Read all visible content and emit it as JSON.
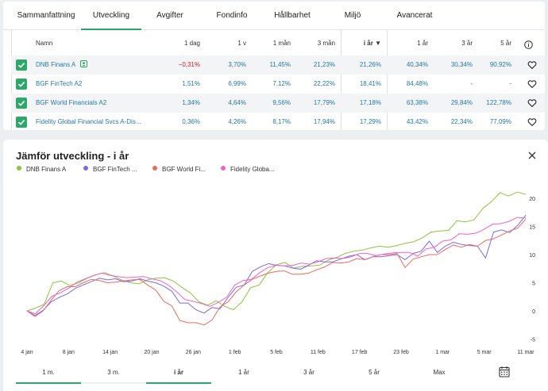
{
  "tabs": [
    {
      "label": "Sammanfattning"
    },
    {
      "label": "Utveckling",
      "active": true
    },
    {
      "label": "Avgifter"
    },
    {
      "label": "Fondinfo"
    },
    {
      "label": "Hållbarhet"
    },
    {
      "label": "Miljö"
    },
    {
      "label": "Avancerat"
    }
  ],
  "table": {
    "columns": [
      "Namn",
      "1 dag",
      "1 v",
      "1 mån",
      "3 mån",
      "i år ▼",
      "1 år",
      "3 år",
      "5 år"
    ],
    "rows": [
      {
        "name": "DNB Finans A",
        "values": [
          "−0,31%",
          "3,70%",
          "11,45%",
          "21,23%",
          "21,26%",
          "40,34%",
          "30,34%",
          "90,92%"
        ]
      },
      {
        "name": "BGF FinTech A2",
        "values": [
          "1,51%",
          "6,99%",
          "7,12%",
          "22,22%",
          "18,41%",
          "84,48%",
          "-",
          "-"
        ]
      },
      {
        "name": "BGF World Financials A2",
        "values": [
          "1,34%",
          "4,64%",
          "9,56%",
          "17,79%",
          "17,18%",
          "63,38%",
          "29,84%",
          "122,78%"
        ]
      },
      {
        "name": "Fidelity Global Financial Svcs A-Dis...",
        "values": [
          "0,36%",
          "4,26%",
          "8,17%",
          "17,94%",
          "17,29%",
          "43,42%",
          "22,34%",
          "77,09%"
        ]
      }
    ]
  },
  "chart_section": {
    "title": "Jämför utveckling - i år",
    "periods": [
      "1 m.",
      "3 m.",
      "i år",
      "1 år",
      "3 år",
      "5 år",
      "Max"
    ],
    "active_period": "i år"
  },
  "colors": {
    "accent": "#2ea86a",
    "negative": "#d21d2e",
    "link": "#2878a8"
  },
  "chart_data": {
    "type": "line",
    "x_ticks": [
      "4 jan",
      "8 jan",
      "14 jan",
      "20 jan",
      "26 jan",
      "1 feb",
      "5 feb",
      "11 feb",
      "17 feb",
      "23 feb",
      "1 mar",
      "5 mar",
      "11 mar"
    ],
    "y_ticks": [
      20,
      15,
      10,
      5,
      0,
      -5
    ],
    "ylim": [
      -5,
      22
    ],
    "grid": false,
    "legend_position": "top-left",
    "series": [
      {
        "name": "DNB Finans A",
        "legend_label": "DNB Finans A",
        "color": "#8bc53f",
        "values": [
          0,
          0.5,
          1.2,
          5,
          5.3,
          4.5,
          5,
          5.8,
          6.4,
          6.8,
          6.2,
          5.5,
          5,
          4.8,
          5.5,
          5.8,
          5.9,
          5.3,
          4.2,
          3.2,
          1.6,
          1,
          1.8,
          0.8,
          0.2,
          1.6,
          4.1,
          4.6,
          6.8,
          8.2,
          8.6,
          7.6,
          7.9,
          8,
          8.1,
          9,
          9.5,
          10.2,
          10.6,
          10.8,
          11.2,
          11.5,
          11.3,
          11.6,
          12,
          12.3,
          13,
          14,
          14.2,
          14.3,
          16,
          15.8,
          16.2,
          18.2,
          19.4,
          21,
          20.4,
          21.1,
          20.7
        ]
      },
      {
        "name": "BGF FinTech A2",
        "legend_label": "BGF FinTech ...",
        "color": "#7b68ee",
        "values": [
          0,
          -0.8,
          0.1,
          1.6,
          2.4,
          3,
          4,
          4.6,
          5.2,
          5.8,
          5.5,
          5.7,
          5.2,
          5.3,
          5.7,
          5.3,
          5,
          4.4,
          3.5,
          1.4,
          1.4,
          0.2,
          -0.4,
          0.6,
          0.4,
          2.4,
          4.2,
          4.6,
          7,
          7.8,
          8.4,
          8.1,
          8,
          7.6,
          7.4,
          8.1,
          8.9,
          8.7,
          8.7,
          9.2,
          9.7,
          10,
          9.1,
          9.6,
          9.6,
          9.8,
          10,
          9.1,
          10.2,
          10.6,
          12.4,
          10.4,
          11.5,
          12.2,
          11.8,
          11.6,
          11.5,
          9.4,
          14,
          14.4,
          13.9,
          15.2,
          17
        ]
      },
      {
        "name": "BGF World Financials A2",
        "legend_label": "BGF World Fi...",
        "color": "#ef6a5a",
        "values": [
          0,
          -1,
          0,
          1.9,
          3.6,
          4.3,
          4.3,
          5,
          5.6,
          5.4,
          5,
          5.1,
          5.3,
          5.5,
          5.6,
          4.6,
          3.7,
          1.7,
          0.9,
          -1.7,
          -2.1,
          -2.1,
          -2.5,
          -1.6,
          0.7,
          1.6,
          3.4,
          4.6,
          5.6,
          6.2,
          6.7,
          7,
          7.1,
          6.5,
          6.5,
          6.7,
          7.3,
          7.8,
          8.6,
          8.5,
          8.7,
          9.3,
          9.1,
          9.6,
          10,
          10,
          10.2,
          7.7,
          9.2,
          9.6,
          10,
          10,
          10.9,
          11.7,
          11.3,
          11.8,
          11.5,
          12.5,
          12.8,
          13.5,
          14.2,
          14.7,
          16.3
        ]
      },
      {
        "name": "Fidelity Global Financial Svcs A-Dis...",
        "legend_label": "Fidelity Globa...",
        "color": "#f261c7",
        "values": [
          0,
          -0.5,
          0.9,
          2.6,
          3.2,
          4,
          5.1,
          5.7,
          6.3,
          6.7,
          6.3,
          6.1,
          5.9,
          6,
          6.1,
          5.7,
          5.4,
          4.6,
          3.4,
          2,
          1.7,
          1.3,
          0.8,
          1.5,
          2.4,
          4.6,
          5.4,
          5.6,
          6.8,
          7.7,
          8.1,
          8,
          8.1,
          8.5,
          8.3,
          8.7,
          9.3,
          9.4,
          9.3,
          9.6,
          10.2,
          10.2,
          9.8,
          10.1,
          10.3,
          10.4,
          10.4,
          9.7,
          11,
          11.3,
          12.4,
          12.6,
          13.7,
          13.6,
          13.8,
          14.5,
          15.4,
          15.5,
          15.9,
          16.6,
          16.5
        ]
      }
    ]
  }
}
